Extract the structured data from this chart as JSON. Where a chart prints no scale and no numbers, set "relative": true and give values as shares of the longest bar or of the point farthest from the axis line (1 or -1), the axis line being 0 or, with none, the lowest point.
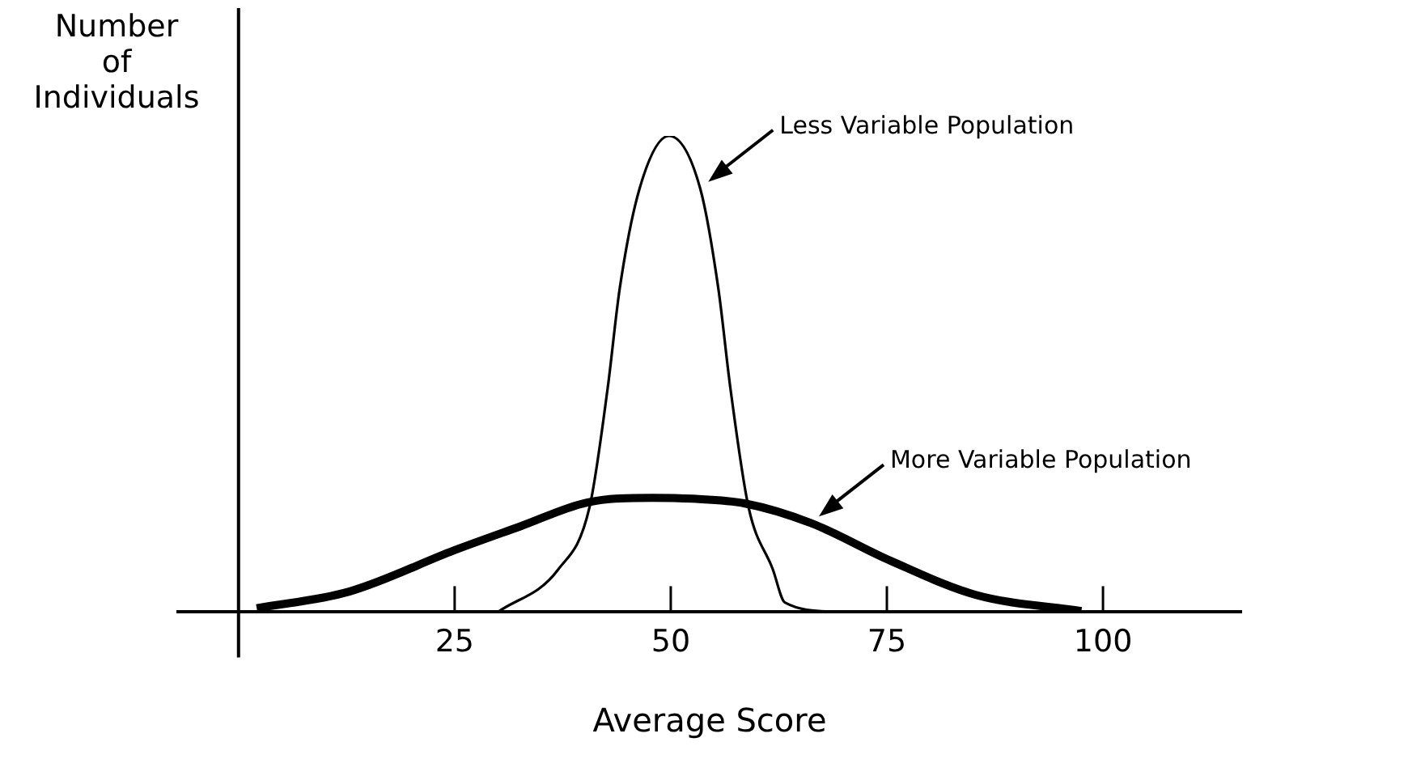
{
  "chart_data": {
    "type": "line",
    "relative": true,
    "xlabel": "Average Score",
    "ylabel": "Number of Individuals",
    "xlim": [
      -7,
      116
    ],
    "xticks": [
      25,
      50,
      75,
      100
    ],
    "grid": false,
    "legend": false,
    "marker": "none",
    "line_style": "solid",
    "series": [
      {
        "name": "Less Variable Population",
        "color": "#000000",
        "x": [
          30,
          37,
          40.6,
          42.7,
          44.1,
          46.4,
          49.8,
          53.4,
          55.5,
          56.9,
          59,
          61.8,
          63.2,
          69.3
        ],
        "values": [
          0,
          0.09,
          0.22,
          0.47,
          0.68,
          0.89,
          1,
          0.89,
          0.68,
          0.47,
          0.22,
          0.09,
          0.02,
          0
        ]
      },
      {
        "name": "More Variable Population",
        "color": "#000000",
        "x": [
          2.1,
          12.8,
          25,
          32.6,
          40.3,
          47.9,
          52.5,
          58.6,
          66.2,
          75.4,
          85.3,
          97.5
        ],
        "values": [
          0.008,
          0.043,
          0.13,
          0.18,
          0.23,
          0.24,
          0.238,
          0.228,
          0.187,
          0.108,
          0.036,
          0.002
        ]
      }
    ]
  }
}
